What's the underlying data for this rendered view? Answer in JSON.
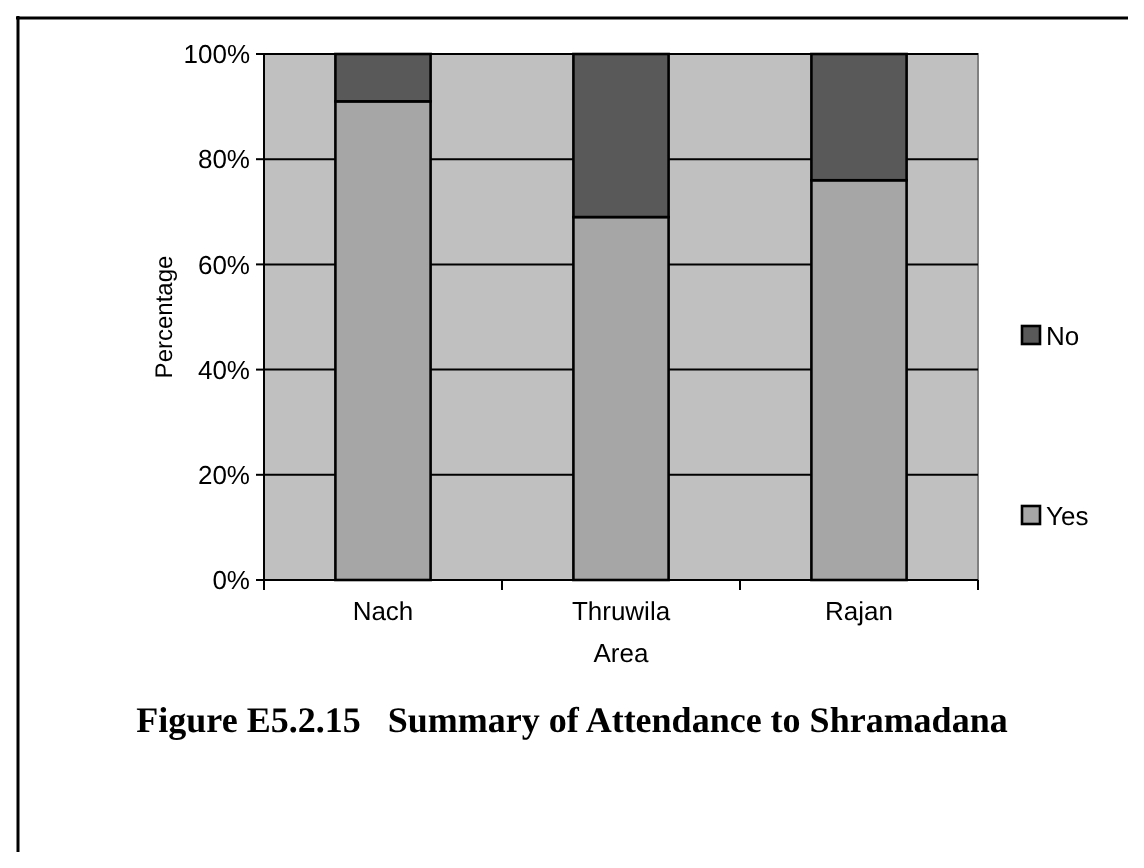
{
  "chart_data": {
    "type": "bar",
    "title": "Figure E5.2.15    Summary of Attendance to Shramadana",
    "xlabel": "Area",
    "ylabel": "Percentage",
    "categories": [
      "Nach",
      "Thruwila",
      "Rajan"
    ],
    "stacked": true,
    "series": [
      {
        "name": "Yes",
        "color": "#a6a6a6",
        "values": [
          91,
          69,
          76
        ]
      },
      {
        "name": "No",
        "color": "#595959",
        "values": [
          9,
          31,
          24
        ]
      }
    ],
    "ylim": [
      0,
      100
    ],
    "yticks": [
      {
        "value": 0,
        "label": "0%"
      },
      {
        "value": 20,
        "label": "20%"
      },
      {
        "value": 40,
        "label": "40%"
      },
      {
        "value": 60,
        "label": "60%"
      },
      {
        "value": 80,
        "label": "80%"
      },
      {
        "value": 100,
        "label": "100%"
      }
    ],
    "grid": "y",
    "legend": "right"
  }
}
